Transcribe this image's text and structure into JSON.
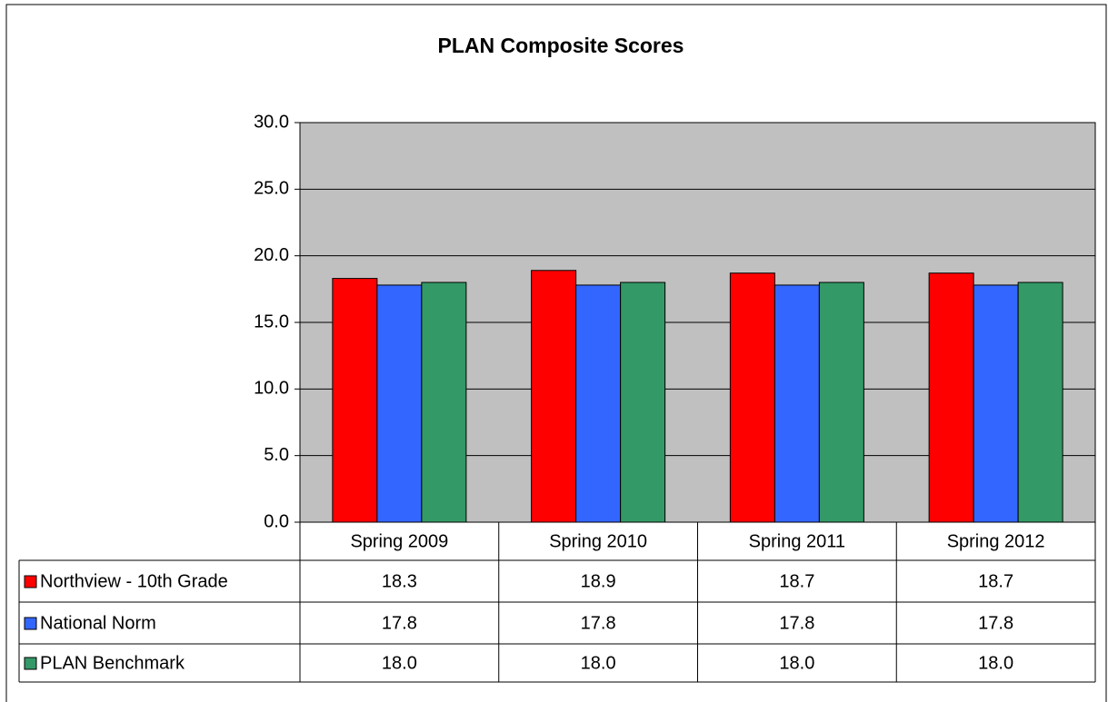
{
  "chart_data": {
    "type": "bar",
    "title": "PLAN Composite Scores",
    "categories": [
      "Spring 2009",
      "Spring 2010",
      "Spring 2011",
      "Spring 2012"
    ],
    "series": [
      {
        "name": "Northview - 10th Grade",
        "color": "#ff0000",
        "values": [
          18.3,
          18.9,
          18.7,
          18.7
        ],
        "value_labels": [
          "18.3",
          "18.9",
          "18.7",
          "18.7"
        ]
      },
      {
        "name": "National Norm",
        "color": "#3366ff",
        "values": [
          17.8,
          17.8,
          17.8,
          17.8
        ],
        "value_labels": [
          "17.8",
          "17.8",
          "17.8",
          "17.8"
        ]
      },
      {
        "name": "PLAN Benchmark",
        "color": "#339966",
        "values": [
          18,
          18,
          18,
          18
        ],
        "value_labels": [
          "18.0",
          "18.0",
          "18.0",
          "18.0"
        ]
      }
    ],
    "ylim": [
      0,
      30
    ],
    "yticks": [
      {
        "value": 0,
        "label": "0.0"
      },
      {
        "value": 5,
        "label": "5.0"
      },
      {
        "value": 10,
        "label": "10.0"
      },
      {
        "value": 15,
        "label": "15.0"
      },
      {
        "value": 20,
        "label": "20.0"
      },
      {
        "value": 25,
        "label": "25.0"
      },
      {
        "value": 30,
        "label": "30.0"
      }
    ],
    "grid": true
  }
}
